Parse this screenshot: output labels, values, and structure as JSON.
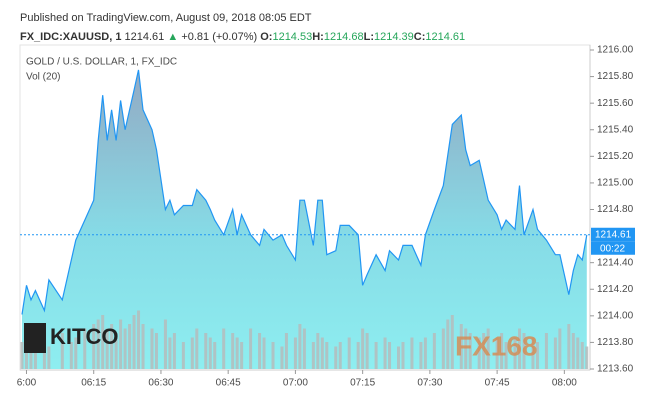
{
  "header": {
    "published": "Published on TradingView.com, August 09, 2018 08:05 EDT",
    "symbol": "FX_IDC:XAUUSD, 1",
    "last": "1214.61",
    "change_arrow": "▲",
    "change": "+0.81 (+0.07%)",
    "ohlc": [
      {
        "label": "O:",
        "value": "1214.53"
      },
      {
        "label": "H:",
        "value": "1214.68"
      },
      {
        "label": "L:",
        "value": "1214.39"
      },
      {
        "label": "C:",
        "value": "1214.61"
      }
    ]
  },
  "watermarks": {
    "left": "KITCO",
    "right": "FX168"
  },
  "chart_data": {
    "type": "area",
    "title": "GOLD / U.S. DOLLAR, 1, FX_IDC",
    "subtitle": "Vol (20)",
    "x": [
      -1,
      0,
      1,
      2,
      4,
      5,
      8,
      10,
      11,
      13,
      15,
      16,
      17,
      18,
      19,
      20,
      21,
      22,
      23,
      24,
      25,
      26,
      28,
      29,
      31,
      32,
      33,
      35,
      37,
      38,
      40,
      41,
      42,
      44,
      46,
      47,
      48,
      50,
      52,
      53,
      55,
      57,
      58,
      60,
      61,
      62,
      64,
      65,
      66,
      67,
      69,
      70,
      72,
      74,
      75,
      76,
      78,
      80,
      81,
      83,
      84,
      86,
      88,
      89,
      91,
      93,
      94,
      95,
      97,
      98,
      99,
      101,
      102,
      103,
      105,
      106,
      107,
      109,
      110,
      111,
      113,
      114,
      116,
      118,
      119,
      121,
      122,
      123,
      124,
      125
    ],
    "series": [
      {
        "name": "XAUUSD",
        "color": "#2196f3",
        "values": [
          1214.01,
          1214.23,
          1214.12,
          1214.19,
          1214.04,
          1214.27,
          1214.12,
          1214.42,
          1214.57,
          1214.72,
          1214.87,
          1215.32,
          1215.66,
          1215.32,
          1215.55,
          1215.32,
          1215.62,
          1215.4,
          1215.55,
          1215.7,
          1215.85,
          1215.55,
          1215.4,
          1215.25,
          1214.8,
          1214.87,
          1214.76,
          1214.83,
          1214.83,
          1214.95,
          1214.87,
          1214.8,
          1214.72,
          1214.61,
          1214.8,
          1214.61,
          1214.76,
          1214.61,
          1214.53,
          1214.65,
          1214.57,
          1214.61,
          1214.53,
          1214.42,
          1214.87,
          1214.87,
          1214.53,
          1214.87,
          1214.87,
          1214.46,
          1214.49,
          1214.68,
          1214.68,
          1214.61,
          1214.23,
          1214.31,
          1214.46,
          1214.34,
          1214.49,
          1214.42,
          1214.53,
          1214.53,
          1214.38,
          1214.61,
          1214.8,
          1214.98,
          1215.21,
          1215.44,
          1215.51,
          1215.25,
          1215.13,
          1215.17,
          1215.02,
          1214.87,
          1214.76,
          1214.65,
          1214.72,
          1214.65,
          1214.98,
          1214.61,
          1214.8,
          1214.65,
          1214.57,
          1214.46,
          1214.46,
          1214.16,
          1214.34,
          1214.46,
          1214.42,
          1214.61
        ]
      },
      {
        "name": "Vol (20)",
        "color": "#b5bcbc",
        "values": [
          30,
          25,
          20,
          35,
          30,
          25,
          40,
          30,
          35,
          45,
          50,
          55,
          60,
          45,
          50,
          40,
          55,
          45,
          50,
          60,
          65,
          50,
          45,
          40,
          55,
          35,
          40,
          30,
          35,
          45,
          40,
          35,
          30,
          45,
          40,
          35,
          30,
          45,
          40,
          35,
          30,
          25,
          40,
          35,
          50,
          45,
          30,
          40,
          35,
          30,
          25,
          30,
          35,
          30,
          45,
          40,
          30,
          35,
          30,
          25,
          30,
          35,
          30,
          35,
          40,
          45,
          55,
          60,
          50,
          45,
          40,
          35,
          40,
          45,
          35,
          40,
          30,
          35,
          45,
          40,
          35,
          30,
          40,
          35,
          45,
          50,
          40,
          35,
          30,
          25
        ]
      }
    ],
    "last_price": 1214.61,
    "countdown": "00:22",
    "xlim": [
      -1,
      125.5
    ],
    "xticks": [
      {
        "value": 0,
        "label": "6:00"
      },
      {
        "value": 15,
        "label": "06:15"
      },
      {
        "value": 30,
        "label": "06:30"
      },
      {
        "value": 45,
        "label": "06:45"
      },
      {
        "value": 60,
        "label": "07:00"
      },
      {
        "value": 75,
        "label": "07:15"
      },
      {
        "value": 90,
        "label": "07:30"
      },
      {
        "value": 105,
        "label": "07:45"
      },
      {
        "value": 120,
        "label": "08:00"
      }
    ],
    "ylim": [
      1213.6,
      1216.0
    ],
    "yticks": [
      {
        "value": 1213.6,
        "label": "1213.60"
      },
      {
        "value": 1213.8,
        "label": "1213.80"
      },
      {
        "value": 1214.0,
        "label": "1214.00"
      },
      {
        "value": 1214.2,
        "label": "1214.20"
      },
      {
        "value": 1214.4,
        "label": "1214.40"
      },
      {
        "value": 1214.8,
        "label": "1214.80"
      },
      {
        "value": 1215.0,
        "label": "1215.00"
      },
      {
        "value": 1215.2,
        "label": "1215.20"
      },
      {
        "value": 1215.4,
        "label": "1215.40"
      },
      {
        "value": 1215.6,
        "label": "1215.60"
      },
      {
        "value": 1215.8,
        "label": "1215.80"
      },
      {
        "value": 1216.0,
        "label": "1216.00"
      }
    ]
  }
}
